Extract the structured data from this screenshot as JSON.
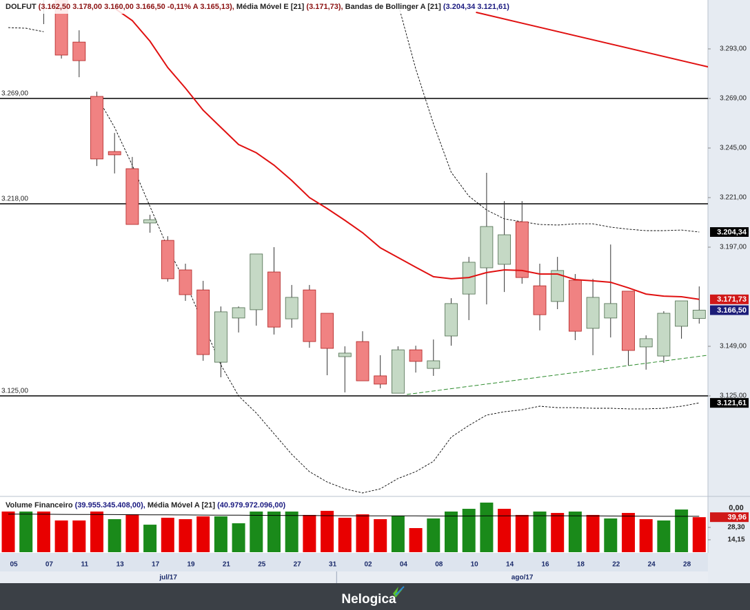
{
  "chart_data": [
    {
      "type": "candlestick",
      "title": "DOLFUT",
      "title_values": "(3.162,50  3.178,00  3.160,00  3.166,50  -0,11%  A 3.165,13),",
      "last_label": "3.166,50",
      "up_color": "#c5d9c5",
      "down_color": "#f08282",
      "open": [
        null,
        null,
        null,
        3317,
        3296.3,
        3270,
        3243.3,
        3235,
        3208.7,
        3200.3,
        3186,
        3176.3,
        3141.3,
        3162.7,
        3166.7,
        3185,
        3162.3,
        3176.3,
        3165,
        3144,
        3151.3,
        3134.7,
        3126.3,
        3147.3,
        3138.3,
        3154,
        3174.3,
        3187,
        3188.7,
        3209.3,
        3178.3,
        3170.7,
        3181,
        3157.7,
        3162.7,
        3175.7,
        3148.7,
        3144.3,
        3158.7,
        3162.5
      ],
      "high": [
        null,
        null,
        null,
        null,
        3302,
        3272.3,
        3252.3,
        3240.7,
        3212.7,
        3202.3,
        3189,
        3180.7,
        3168.3,
        3168.3,
        3193.7,
        3197,
        3178.7,
        3178.7,
        3165,
        3149,
        3156.3,
        3144.7,
        3149,
        3149.3,
        3152.3,
        3172.3,
        3192.3,
        3233,
        3219.3,
        3219.3,
        3189,
        3192.3,
        3184,
        3181.7,
        3198.3,
        3175.7,
        3154.3,
        3166,
        3171,
        3178
      ],
      "low": [
        null,
        null,
        3305,
        3288.3,
        3279.3,
        3236.3,
        3232.7,
        3208,
        3204,
        3180.3,
        3171,
        3142,
        3134,
        3155.7,
        3159,
        3154.7,
        3158,
        3148.3,
        3135,
        3126.7,
        3132.3,
        3128.7,
        3126.3,
        3136.3,
        3134.7,
        3149.3,
        3161.7,
        3169.3,
        3175.3,
        3179.3,
        3156.7,
        3167,
        3152,
        3144.7,
        3153.3,
        3139.7,
        3137.7,
        3141,
        3152.7,
        3160
      ],
      "close": [
        null,
        null,
        null,
        3290,
        3287.3,
        3239.7,
        3241.7,
        3208,
        3210.3,
        3181.7,
        3174,
        3145,
        3165.7,
        3167.7,
        3193.7,
        3158.3,
        3172.7,
        3151.3,
        3148,
        3145.7,
        3132.3,
        3130.7,
        3147.3,
        3141.7,
        3142,
        3169.7,
        3189.7,
        3207,
        3203,
        3182.3,
        3164.3,
        3185.7,
        3156.3,
        3172.7,
        3169.7,
        3147,
        3152.7,
        3165,
        3171,
        3166.5
      ],
      "ylim": [
        3076.67,
        3316.67
      ],
      "yticks": [
        {
          "value": 3293,
          "label": "3.293,00"
        },
        {
          "value": 3269,
          "label": "3.269,00"
        },
        {
          "value": 3245,
          "label": "3.245,00"
        },
        {
          "value": 3221,
          "label": "3.221,00"
        },
        {
          "value": 3197,
          "label": "3.197,00"
        },
        {
          "value": 3149,
          "label": "3.149,00"
        },
        {
          "value": 3125,
          "label": "3.125,00"
        }
      ],
      "series": [
        {
          "name": "Média Móvel E [21]",
          "header_values": "(3.171,73),",
          "color": "#e01010",
          "last_label": "3.171,73",
          "values": [
            null,
            null,
            null,
            null,
            null,
            null,
            3312.7,
            3306.7,
            3296.7,
            3284,
            3274,
            3263.3,
            3255,
            3246.7,
            3242.7,
            3236.7,
            3229.3,
            3221,
            3215.7,
            3210,
            3204,
            3196.7,
            3192,
            3187.3,
            3182.7,
            3181.7,
            3182.3,
            3184.7,
            3186,
            3185.7,
            3184,
            3184,
            3181.3,
            3180.7,
            3180,
            3177.3,
            3174.3,
            3173.3,
            3173,
            3171.73
          ]
        },
        {
          "name": "Bandas de Bollinger A [21]",
          "header_values": "(3.204,34  3.121,61)",
          "color": "#000000",
          "upper_label": "3.204,34",
          "lower_label": "3.121,61",
          "upper": [
            3303.3,
            3303,
            3301.3,
            null,
            null,
            null,
            null,
            null,
            null,
            null,
            null,
            null,
            null,
            null,
            null,
            null,
            null,
            null,
            null,
            null,
            null,
            null,
            3315,
            3283.3,
            3256.7,
            3233.3,
            3221.7,
            3215,
            3210.7,
            3209.3,
            3208,
            3207.7,
            3208.3,
            3208.3,
            3206.7,
            3205.7,
            3205,
            3205,
            3205.3,
            3204.34
          ],
          "lower": [
            null,
            null,
            null,
            null,
            null,
            3270,
            3255,
            3236.7,
            3216.7,
            3196.7,
            3180,
            3160,
            3140,
            3125,
            3116.7,
            3106.7,
            3096.7,
            3088.3,
            3083.3,
            3080,
            3078,
            3080,
            3085,
            3088.3,
            3093.3,
            3105,
            3110.7,
            3115.7,
            3117.3,
            3118.3,
            3120,
            3119.3,
            3119.3,
            3119,
            3119,
            3118.7,
            3118.7,
            3119,
            3120,
            3121.61
          ]
        }
      ],
      "hlines": [
        {
          "value": 3269,
          "label": "3.269,00"
        },
        {
          "value": 3218,
          "label": "3.218,00"
        },
        {
          "value": 3125,
          "label": "3.125,00"
        }
      ],
      "trendlines": [
        {
          "color": "#e01010",
          "style": "solid",
          "x": [
            26.4,
            39.5
          ],
          "y": [
            3310.7,
            3284.3
          ]
        },
        {
          "color": "#2a8a2a",
          "style": "dashed",
          "x": [
            22.5,
            39.5
          ],
          "y": [
            3125.7,
            3144.7
          ]
        }
      ]
    },
    {
      "type": "bar",
      "title": "Volume Financeiro",
      "title_values": "(39.955.345.408,00),",
      "last_label": "39,96",
      "scale_label": "0,00",
      "categories": [
        "05",
        null,
        "07",
        null,
        "11",
        null,
        "13",
        null,
        "17",
        null,
        "19",
        null,
        "21",
        null,
        "25",
        null,
        "27",
        null,
        "31",
        null,
        "02",
        null,
        "04",
        null,
        "08",
        null,
        "10",
        null,
        "14",
        null,
        "16",
        null,
        "18",
        null,
        "22",
        null,
        "24",
        null,
        "28",
        null
      ],
      "months": [
        "jul/17",
        "ago/17"
      ],
      "month_starts": [
        0,
        19
      ],
      "values": [
        46.4,
        46.4,
        46.4,
        36.2,
        36.2,
        46.4,
        37.7,
        43.2,
        31.4,
        39.3,
        37.7,
        40.9,
        40.9,
        33,
        46.4,
        46.4,
        46.4,
        42.5,
        47.2,
        39.3,
        43.2,
        37.7,
        41.7,
        27.5,
        38.5,
        46.4,
        49.5,
        56.6,
        49.5,
        42.5,
        46.4,
        44.8,
        46.4,
        42.5,
        38.5,
        44.8,
        37.7,
        36.2,
        48.7,
        39.96
      ],
      "colors": [
        "#e80000",
        "#1a8a1a",
        "#e80000",
        "#e80000",
        "#e80000",
        "#e80000",
        "#1a8a1a",
        "#e80000",
        "#1a8a1a",
        "#e80000",
        "#e80000",
        "#e80000",
        "#1a8a1a",
        "#1a8a1a",
        "#1a8a1a",
        "#1a8a1a",
        "#1a8a1a",
        "#e80000",
        "#e80000",
        "#e80000",
        "#e80000",
        "#e80000",
        "#1a8a1a",
        "#e80000",
        "#1a8a1a",
        "#1a8a1a",
        "#1a8a1a",
        "#1a8a1a",
        "#e80000",
        "#e80000",
        "#1a8a1a",
        "#e80000",
        "#1a8a1a",
        "#e80000",
        "#1a8a1a",
        "#e80000",
        "#e80000",
        "#1a8a1a",
        "#1a8a1a",
        "#e80000"
      ],
      "ylim": [
        0,
        62.9
      ],
      "yticks": [
        {
          "value": 14.15,
          "label": "14,15"
        },
        {
          "value": 28.3,
          "label": "28,30"
        }
      ],
      "series": [
        {
          "name": "Média Móvel A [21]",
          "header_values": "(40.979.972.096,00)",
          "color": "#000000",
          "values": [
            43.5,
            43.4,
            43.3,
            43.2,
            43.1,
            43.0,
            42.9,
            42.8,
            42.7,
            42.6,
            42.5,
            42.4,
            42.3,
            42.2,
            42.1,
            42.0,
            41.9,
            41.8,
            41.7,
            41.6,
            41.5,
            41.5,
            41.4,
            41.4,
            41.3,
            41.3,
            41.3,
            41.4,
            41.5,
            41.6,
            41.6,
            41.6,
            41.5,
            41.4,
            41.3,
            41.2,
            41.1,
            41.0,
            41.0,
            40.98
          ]
        }
      ]
    }
  ],
  "footer": {
    "brand": "Nelogica"
  }
}
